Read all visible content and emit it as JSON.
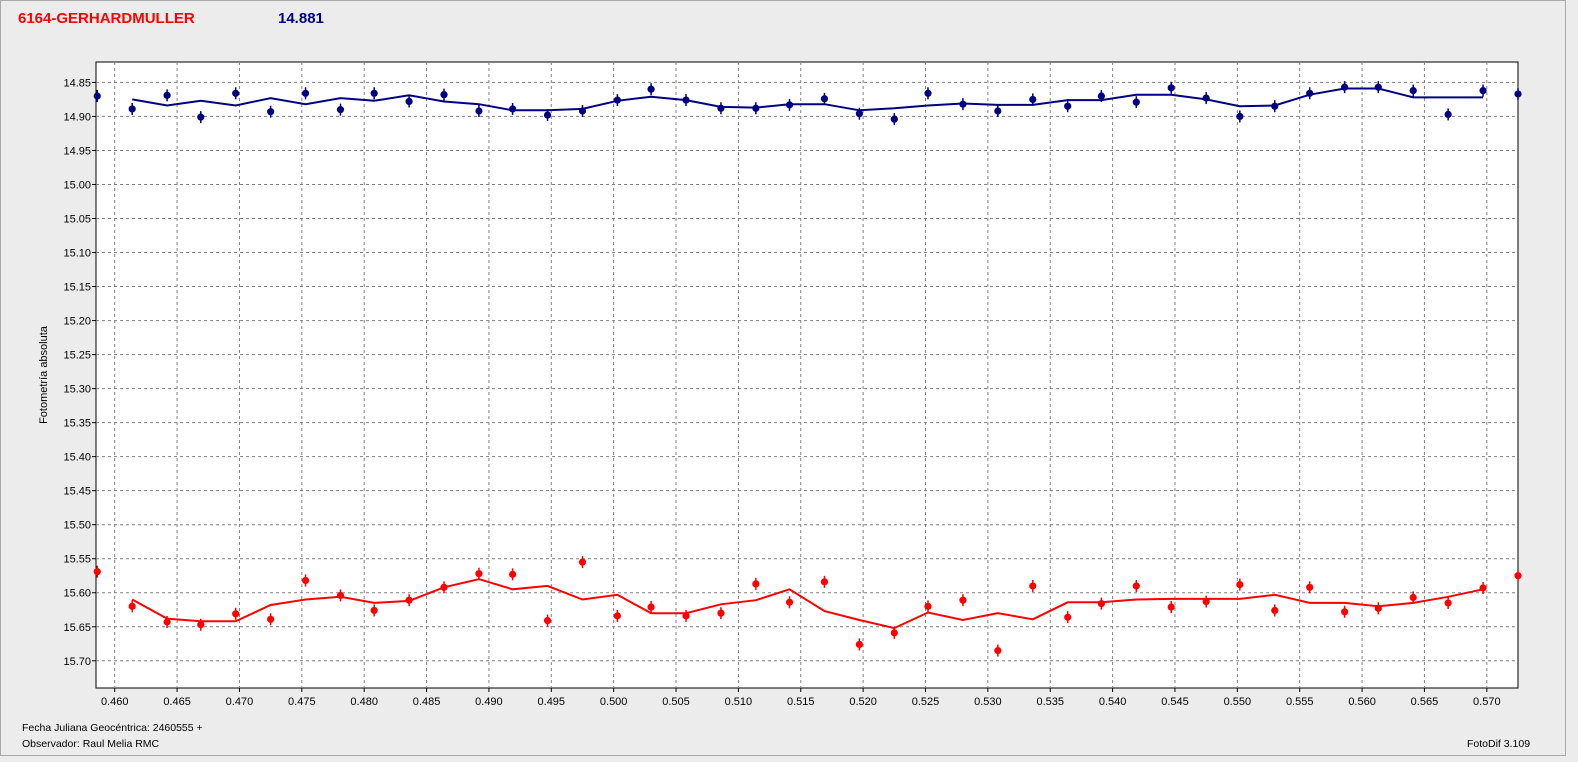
{
  "header": {
    "object_name": "6164-GERHARDMULLER",
    "magnitude": "14.881"
  },
  "footer": {
    "date_label": "Fecha Juliana Geocéntrica: 2460555 +",
    "observer_label": "Observador: Raul Melia RMC",
    "software_label": "FotoDif 3.109"
  },
  "colors": {
    "series_blue": "#000080",
    "series_red": "#ff0000",
    "plot_bg": "#ffffff",
    "grid": "#808080"
  },
  "chart_data": {
    "type": "scatter",
    "title": "",
    "xlabel": "",
    "ylabel": "Fotometría absoluta",
    "xlim": [
      0.4585,
      0.5725
    ],
    "ylim": [
      14.82,
      15.74
    ],
    "y_inverted": true,
    "grid": true,
    "x_ticks": [
      "0.460",
      "0.465",
      "0.470",
      "0.475",
      "0.480",
      "0.485",
      "0.490",
      "0.495",
      "0.500",
      "0.505",
      "0.510",
      "0.515",
      "0.520",
      "0.525",
      "0.530",
      "0.535",
      "0.540",
      "0.545",
      "0.550",
      "0.555",
      "0.560",
      "0.565",
      "0.570"
    ],
    "y_ticks": [
      "14.85",
      "14.90",
      "14.95",
      "15.00",
      "15.05",
      "15.10",
      "15.15",
      "15.20",
      "15.25",
      "15.30",
      "15.35",
      "15.40",
      "15.45",
      "15.50",
      "15.55",
      "15.60",
      "15.65",
      "15.70"
    ],
    "series": [
      {
        "color": "#000080",
        "points": [
          [
            0.4586,
            14.87
          ],
          [
            0.4614,
            14.889
          ],
          [
            0.4642,
            14.869
          ],
          [
            0.4669,
            14.901
          ],
          [
            0.4697,
            14.866
          ],
          [
            0.4725,
            14.893
          ],
          [
            0.4753,
            14.866
          ],
          [
            0.4781,
            14.89
          ],
          [
            0.4808,
            14.866
          ],
          [
            0.4836,
            14.878
          ],
          [
            0.4864,
            14.868
          ],
          [
            0.4892,
            14.892
          ],
          [
            0.4919,
            14.889
          ],
          [
            0.4947,
            14.898
          ],
          [
            0.4975,
            14.892
          ],
          [
            0.5003,
            14.876
          ],
          [
            0.503,
            14.86
          ],
          [
            0.5058,
            14.876
          ],
          [
            0.5086,
            14.888
          ],
          [
            0.5114,
            14.888
          ],
          [
            0.5141,
            14.883
          ],
          [
            0.5169,
            14.874
          ],
          [
            0.5197,
            14.896
          ],
          [
            0.5225,
            14.904
          ],
          [
            0.5252,
            14.866
          ],
          [
            0.528,
            14.882
          ],
          [
            0.5308,
            14.892
          ],
          [
            0.5336,
            14.875
          ],
          [
            0.5364,
            14.885
          ],
          [
            0.5391,
            14.87
          ],
          [
            0.5419,
            14.879
          ],
          [
            0.5447,
            14.858
          ],
          [
            0.5475,
            14.873
          ],
          [
            0.5502,
            14.9
          ],
          [
            0.553,
            14.885
          ],
          [
            0.5558,
            14.866
          ],
          [
            0.5586,
            14.857
          ],
          [
            0.5613,
            14.857
          ],
          [
            0.5641,
            14.862
          ],
          [
            0.5669,
            14.897
          ],
          [
            0.5697,
            14.862
          ],
          [
            0.5725,
            14.867
          ]
        ],
        "fit": [
          [
            0.4614,
            14.875
          ],
          [
            0.4642,
            14.884
          ],
          [
            0.4669,
            14.877
          ],
          [
            0.4697,
            14.884
          ],
          [
            0.4725,
            14.873
          ],
          [
            0.4753,
            14.882
          ],
          [
            0.4781,
            14.873
          ],
          [
            0.4808,
            14.877
          ],
          [
            0.4836,
            14.869
          ],
          [
            0.4864,
            14.878
          ],
          [
            0.4892,
            14.882
          ],
          [
            0.4919,
            14.891
          ],
          [
            0.4947,
            14.891
          ],
          [
            0.4975,
            14.889
          ],
          [
            0.5003,
            14.877
          ],
          [
            0.503,
            14.871
          ],
          [
            0.5058,
            14.876
          ],
          [
            0.5086,
            14.886
          ],
          [
            0.5114,
            14.887
          ],
          [
            0.5141,
            14.882
          ],
          [
            0.5169,
            14.882
          ],
          [
            0.5197,
            14.891
          ],
          [
            0.5225,
            14.888
          ],
          [
            0.5252,
            14.884
          ],
          [
            0.528,
            14.881
          ],
          [
            0.5308,
            14.883
          ],
          [
            0.5336,
            14.883
          ],
          [
            0.5364,
            14.876
          ],
          [
            0.5391,
            14.876
          ],
          [
            0.5419,
            14.868
          ],
          [
            0.5447,
            14.868
          ],
          [
            0.5475,
            14.875
          ],
          [
            0.5502,
            14.885
          ],
          [
            0.553,
            14.884
          ],
          [
            0.5558,
            14.868
          ],
          [
            0.5586,
            14.859
          ],
          [
            0.5613,
            14.859
          ],
          [
            0.5641,
            14.872
          ],
          [
            0.5669,
            14.872
          ],
          [
            0.5697,
            14.872
          ]
        ]
      },
      {
        "color": "#ff0000",
        "points": [
          [
            0.4586,
            15.569
          ],
          [
            0.4614,
            15.62
          ],
          [
            0.4642,
            15.643
          ],
          [
            0.4669,
            15.647
          ],
          [
            0.4697,
            15.631
          ],
          [
            0.4725,
            15.639
          ],
          [
            0.4753,
            15.582
          ],
          [
            0.4781,
            15.604
          ],
          [
            0.4808,
            15.626
          ],
          [
            0.4836,
            15.611
          ],
          [
            0.4864,
            15.592
          ],
          [
            0.4892,
            15.572
          ],
          [
            0.4919,
            15.573
          ],
          [
            0.4947,
            15.641
          ],
          [
            0.4975,
            15.555
          ],
          [
            0.5003,
            15.634
          ],
          [
            0.503,
            15.621
          ],
          [
            0.5058,
            15.634
          ],
          [
            0.5086,
            15.63
          ],
          [
            0.5114,
            15.587
          ],
          [
            0.5141,
            15.614
          ],
          [
            0.5169,
            15.584
          ],
          [
            0.5197,
            15.676
          ],
          [
            0.5225,
            15.659
          ],
          [
            0.5252,
            15.62
          ],
          [
            0.528,
            15.611
          ],
          [
            0.5308,
            15.685
          ],
          [
            0.5336,
            15.59
          ],
          [
            0.5364,
            15.636
          ],
          [
            0.5391,
            15.616
          ],
          [
            0.5419,
            15.59
          ],
          [
            0.5447,
            15.621
          ],
          [
            0.5475,
            15.613
          ],
          [
            0.5502,
            15.588
          ],
          [
            0.553,
            15.626
          ],
          [
            0.5558,
            15.592
          ],
          [
            0.5586,
            15.628
          ],
          [
            0.5613,
            15.623
          ],
          [
            0.5641,
            15.607
          ],
          [
            0.5669,
            15.615
          ],
          [
            0.5697,
            15.593
          ],
          [
            0.5725,
            15.575
          ]
        ],
        "fit": [
          [
            0.4614,
            15.61
          ],
          [
            0.4642,
            15.638
          ],
          [
            0.4669,
            15.642
          ],
          [
            0.4697,
            15.642
          ],
          [
            0.4725,
            15.618
          ],
          [
            0.4753,
            15.61
          ],
          [
            0.4781,
            15.606
          ],
          [
            0.4808,
            15.615
          ],
          [
            0.4836,
            15.612
          ],
          [
            0.4864,
            15.592
          ],
          [
            0.4892,
            15.58
          ],
          [
            0.4919,
            15.595
          ],
          [
            0.4947,
            15.59
          ],
          [
            0.4975,
            15.61
          ],
          [
            0.5003,
            15.603
          ],
          [
            0.503,
            15.63
          ],
          [
            0.5058,
            15.63
          ],
          [
            0.5086,
            15.617
          ],
          [
            0.5114,
            15.611
          ],
          [
            0.5141,
            15.595
          ],
          [
            0.5169,
            15.627
          ],
          [
            0.5197,
            15.64
          ],
          [
            0.5225,
            15.652
          ],
          [
            0.5252,
            15.629
          ],
          [
            0.528,
            15.64
          ],
          [
            0.5308,
            15.63
          ],
          [
            0.5336,
            15.639
          ],
          [
            0.5364,
            15.614
          ],
          [
            0.5391,
            15.614
          ],
          [
            0.5419,
            15.61
          ],
          [
            0.5447,
            15.609
          ],
          [
            0.5475,
            15.609
          ],
          [
            0.5502,
            15.609
          ],
          [
            0.553,
            15.603
          ],
          [
            0.5558,
            15.615
          ],
          [
            0.5586,
            15.615
          ],
          [
            0.5613,
            15.62
          ],
          [
            0.5641,
            15.615
          ],
          [
            0.5669,
            15.606
          ],
          [
            0.5697,
            15.595
          ]
        ]
      }
    ]
  }
}
